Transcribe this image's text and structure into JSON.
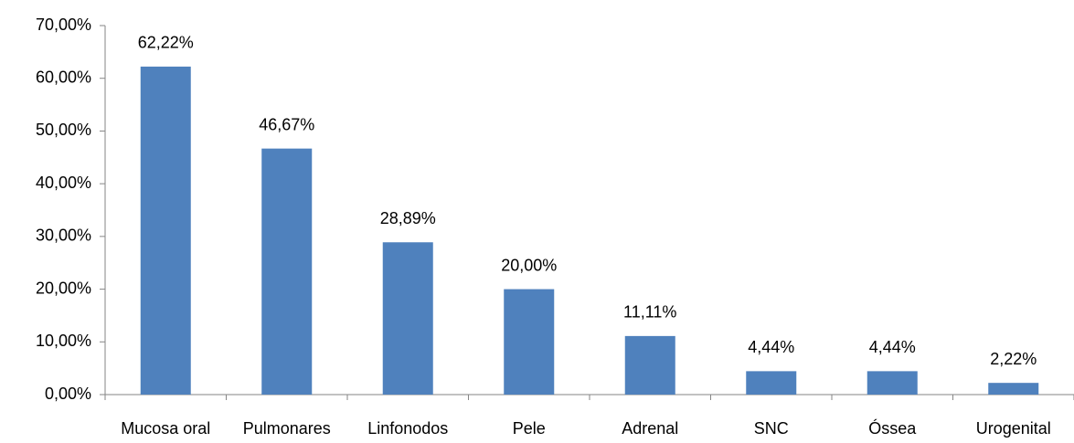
{
  "chart_data": {
    "type": "bar",
    "categories": [
      "Mucosa oral",
      "Pulmonares",
      "Linfonodos",
      "Pele",
      "Adrenal",
      "SNC",
      "Óssea",
      "Urogenital"
    ],
    "values": [
      62.22,
      46.67,
      28.89,
      20.0,
      11.11,
      4.44,
      4.44,
      2.22
    ],
    "value_labels": [
      "62,22%",
      "46,67%",
      "28,89%",
      "20,00%",
      "11,11%",
      "4,44%",
      "4,44%",
      "2,22%"
    ],
    "color": "#4f81bd",
    "ylim": [
      0,
      70
    ],
    "yticks": [
      {
        "value": 0,
        "label": "0,00%"
      },
      {
        "value": 10,
        "label": "10,00%"
      },
      {
        "value": 20,
        "label": "20,00%"
      },
      {
        "value": 30,
        "label": "30,00%"
      },
      {
        "value": 40,
        "label": "40,00%"
      },
      {
        "value": 50,
        "label": "50,00%"
      },
      {
        "value": 60,
        "label": "60,00%"
      },
      {
        "value": 70,
        "label": "70,00%"
      }
    ],
    "grid": false
  }
}
